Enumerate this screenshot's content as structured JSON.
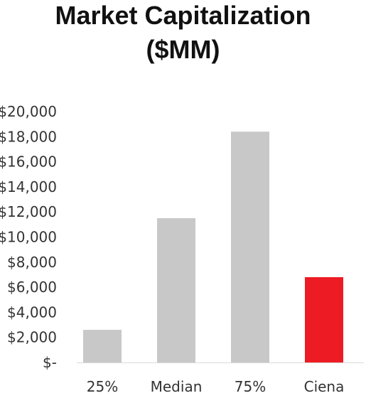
{
  "chart_data": {
    "type": "bar",
    "title_line1": "Market Capitalization",
    "title_line2": "($MM)",
    "categories": [
      "25%",
      "Median",
      "75%",
      "Ciena"
    ],
    "values": [
      2600,
      11500,
      18400,
      6800
    ],
    "colors": [
      "#c8c8c8",
      "#c8c8c8",
      "#c8c8c8",
      "#ed1c24"
    ],
    "ylim": [
      0,
      20000
    ],
    "yticks": [
      0,
      2000,
      4000,
      6000,
      8000,
      10000,
      12000,
      14000,
      16000,
      18000,
      20000
    ],
    "ytick_labels": [
      "$-",
      "$2,000",
      "$4,000",
      "$6,000",
      "$8,000",
      "$10,000",
      "$12,000",
      "$14,000",
      "$16,000",
      "$18,000",
      "$20,000"
    ],
    "grid": false,
    "baseline_color": "#d9d9d9",
    "xlabel": "",
    "ylabel": ""
  }
}
